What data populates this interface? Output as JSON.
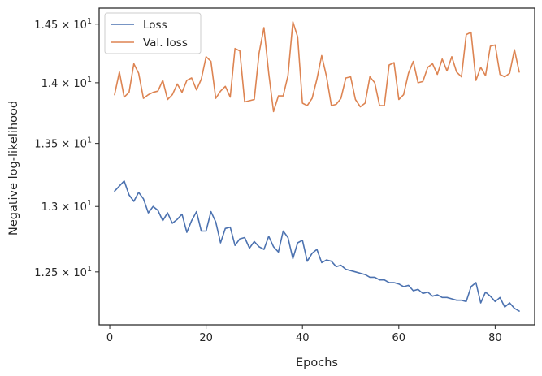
{
  "chart_data": {
    "type": "line",
    "xlabel": "Epochs",
    "ylabel": "Negative log-likelihood",
    "xlim": [
      -2.2,
      88.2
    ],
    "ylim": [
      12.11,
      14.64
    ],
    "yscale": "log",
    "grid": false,
    "legend_position": "top-left",
    "x_ticks": [
      0,
      20,
      40,
      60,
      80
    ],
    "x_tick_labels": [
      "0",
      "20",
      "40",
      "60",
      "80"
    ],
    "y_ticks": [
      {
        "value": 12.5,
        "mant": "1.25",
        "exp": "1"
      },
      {
        "value": 13.0,
        "mant": "1.3",
        "exp": "1"
      },
      {
        "value": 13.5,
        "mant": "1.35",
        "exp": "1"
      },
      {
        "value": 14.0,
        "mant": "1.4",
        "exp": "1"
      },
      {
        "value": 14.5,
        "mant": "1.45",
        "exp": "1"
      }
    ],
    "x": [
      1,
      2,
      3,
      4,
      5,
      6,
      7,
      8,
      9,
      10,
      11,
      12,
      13,
      14,
      15,
      16,
      17,
      18,
      19,
      20,
      21,
      22,
      23,
      24,
      25,
      26,
      27,
      28,
      29,
      30,
      31,
      32,
      33,
      34,
      35,
      36,
      37,
      38,
      39,
      40,
      41,
      42,
      43,
      44,
      45,
      46,
      47,
      48,
      49,
      50,
      51,
      52,
      53,
      54,
      55,
      56,
      57,
      58,
      59,
      60,
      61,
      62,
      63,
      64,
      65,
      66,
      67,
      68,
      69,
      70,
      71,
      72,
      73,
      74,
      75,
      76,
      77,
      78,
      79,
      80,
      81,
      82,
      83,
      84,
      85
    ],
    "series": [
      {
        "name": "Loss",
        "color": "#4c72b0",
        "values": [
          13.12,
          13.16,
          13.2,
          13.09,
          13.04,
          13.11,
          13.06,
          12.95,
          13.0,
          12.97,
          12.89,
          12.95,
          12.87,
          12.9,
          12.94,
          12.8,
          12.89,
          12.96,
          12.81,
          12.81,
          12.96,
          12.88,
          12.72,
          12.83,
          12.84,
          12.7,
          12.75,
          12.76,
          12.68,
          12.73,
          12.69,
          12.67,
          12.77,
          12.69,
          12.65,
          12.81,
          12.76,
          12.6,
          12.72,
          12.74,
          12.58,
          12.64,
          12.67,
          12.57,
          12.59,
          12.58,
          12.54,
          12.55,
          12.52,
          12.51,
          12.5,
          12.49,
          12.48,
          12.46,
          12.46,
          12.44,
          12.44,
          12.42,
          12.42,
          12.41,
          12.39,
          12.4,
          12.36,
          12.37,
          12.34,
          12.35,
          12.32,
          12.33,
          12.31,
          12.31,
          12.3,
          12.29,
          12.29,
          12.28,
          12.39,
          12.42,
          12.27,
          12.35,
          12.32,
          12.28,
          12.31,
          12.24,
          12.27,
          12.23,
          12.21
        ]
      },
      {
        "name": "Val. loss",
        "color": "#dd8452",
        "values": [
          13.9,
          14.09,
          13.88,
          13.92,
          14.16,
          14.08,
          13.87,
          13.9,
          13.92,
          13.93,
          14.02,
          13.86,
          13.9,
          13.99,
          13.92,
          14.02,
          14.04,
          13.94,
          14.03,
          14.22,
          14.18,
          13.87,
          13.93,
          13.97,
          13.88,
          14.29,
          14.27,
          13.84,
          13.85,
          13.86,
          14.25,
          14.47,
          14.08,
          13.76,
          13.89,
          13.89,
          14.06,
          14.52,
          14.39,
          13.83,
          13.81,
          13.87,
          14.03,
          14.23,
          14.05,
          13.81,
          13.82,
          13.87,
          14.04,
          14.05,
          13.86,
          13.8,
          13.83,
          14.05,
          14.0,
          13.81,
          13.81,
          14.15,
          14.17,
          13.86,
          13.9,
          14.08,
          14.18,
          14.0,
          14.01,
          14.13,
          14.16,
          14.07,
          14.2,
          14.1,
          14.22,
          14.09,
          14.05,
          14.41,
          14.43,
          14.02,
          14.13,
          14.06,
          14.31,
          14.32,
          14.07,
          14.05,
          14.08,
          14.28,
          14.09
        ]
      }
    ]
  }
}
